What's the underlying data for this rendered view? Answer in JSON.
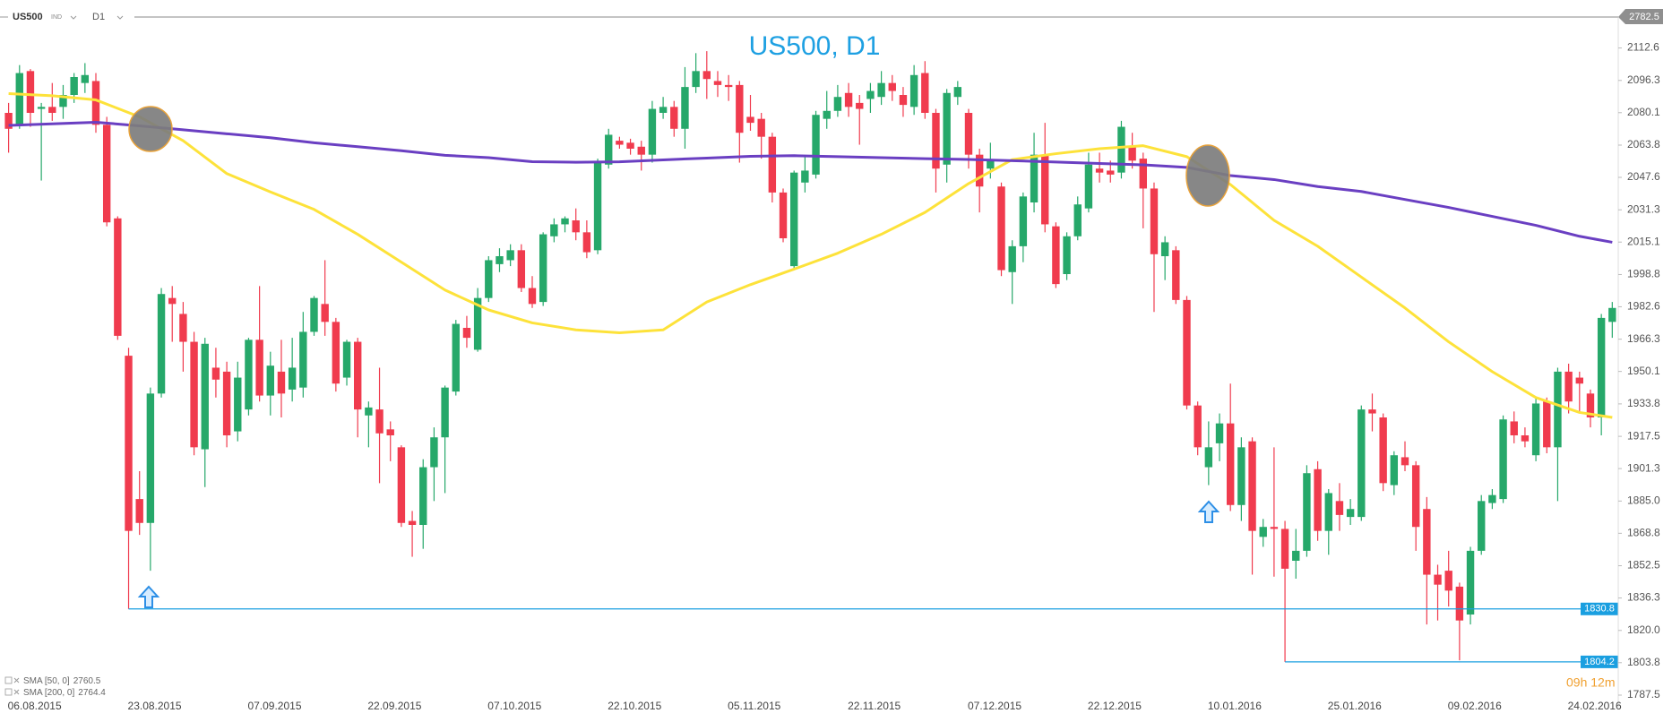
{
  "chart_data": {
    "type": "candlestick",
    "title": "US500, D1",
    "symbol": "US500",
    "symbol_type": "IND",
    "timeframe": "D1",
    "current_price": 2782.5,
    "countdown": "09h 12m",
    "up_color": "#26a86a",
    "down_color": "#f03b4e",
    "categories": [
      "06.08.2015",
      null,
      null,
      null,
      null,
      null,
      null,
      null,
      null,
      null,
      null,
      "23.08.2015",
      null,
      null,
      null,
      null,
      null,
      null,
      null,
      null,
      null,
      null,
      "07.09.2015",
      null,
      null,
      null,
      null,
      null,
      null,
      null,
      null,
      null,
      null,
      "22.09.2015",
      null,
      null,
      null,
      null,
      null,
      null,
      null,
      null,
      null,
      null,
      "07.10.2015",
      null,
      null,
      null,
      null,
      null,
      null,
      null,
      null,
      null,
      null,
      "22.10.2015",
      null,
      null,
      null,
      null,
      null,
      null,
      null,
      null,
      null,
      null,
      "05.11.2015",
      null,
      null,
      null,
      null,
      null,
      null,
      null,
      null,
      null,
      null,
      "22.11.2015",
      null,
      null,
      null,
      null,
      null,
      null,
      null,
      null,
      null,
      null,
      "07.12.2015",
      null,
      null,
      null,
      null,
      null,
      null,
      null,
      null,
      null,
      null,
      "22.12.2015",
      null,
      null,
      null,
      null,
      null,
      null,
      null,
      null,
      null,
      null,
      "10.01.2016",
      null,
      null,
      null,
      null,
      null,
      null,
      null,
      null,
      null,
      null,
      "25.01.2016",
      null,
      null,
      null,
      null,
      null,
      null,
      null,
      null,
      null,
      null,
      "09.02.2016",
      null,
      null,
      null,
      null,
      null,
      null,
      null,
      null,
      null,
      null,
      "24.02.2016",
      null,
      null,
      null,
      null
    ],
    "open": [
      2080,
      2074,
      2101,
      2082,
      2083,
      2083,
      2089,
      2095,
      2096,
      2074,
      2027,
      1958,
      1886,
      1874,
      1939,
      1987,
      1979,
      1965,
      1911,
      1952,
      1950,
      1920,
      1931,
      1966,
      1938,
      1950,
      1941,
      1942,
      1970,
      1984,
      1975,
      1947,
      1965,
      1928,
      1931,
      1921,
      1912,
      1875,
      1873,
      1902,
      1917,
      1940,
      1972,
      1961,
      1987,
      2004,
      2006,
      2011,
      1992,
      1985,
      2018,
      2024,
      2026,
      2020,
      2011,
      2054,
      2066,
      2065,
      2063,
      2059,
      2080,
      2083,
      2072,
      2093,
      2101,
      2096,
      2094,
      2094,
      2078,
      2077,
      2068,
      2040,
      2003,
      2045,
      2049,
      2077,
      2081,
      2090,
      2085,
      2087,
      2088,
      2095,
      2089,
      2083,
      2100,
      2080,
      2054,
      2088,
      2080,
      2059,
      2052,
      2043,
      2000,
      2013,
      2035,
      2059,
      2023,
      1999,
      2018,
      2032,
      2052,
      2051,
      2050,
      2063,
      2057,
      2042,
      2008,
      2011,
      1986,
      1933,
      1902,
      1914,
      1924,
      1883,
      1915,
      1867,
      1872,
      1871,
      1855,
      1860,
      1901,
      1870,
      1885,
      1877,
      1877,
      1931,
      1927,
      1893,
      1907,
      1903,
      1881,
      1848,
      1850,
      1842,
      1828,
      1860,
      1884,
      1886,
      1925,
      1918,
      1908,
      1935,
      1912,
      1950,
      1947,
      1939,
      1927,
      1975
    ],
    "high": [
      2085,
      2104,
      2102,
      2085,
      2095,
      2094,
      2100,
      2105,
      2100,
      2078,
      2028,
      1962,
      1900,
      1942,
      1992,
      1993,
      1985,
      1970,
      1967,
      1962,
      1955,
      1955,
      1967,
      1993,
      1960,
      1966,
      1967,
      1980,
      1988,
      2006,
      1977,
      1966,
      1967,
      1935,
      1952,
      1925,
      1913,
      1880,
      1906,
      1922,
      1943,
      1976,
      1978,
      1992,
      2008,
      2012,
      2014,
      2014,
      1998,
      2020,
      2027,
      2028,
      2032,
      2026,
      2057,
      2072,
      2068,
      2067,
      2066,
      2086,
      2088,
      2086,
      2103,
      2110,
      2111,
      2101,
      2099,
      2096,
      2089,
      2080,
      2070,
      2042,
      2051,
      2058,
      2081,
      2091,
      2094,
      2095,
      2089,
      2095,
      2101,
      2099,
      2093,
      2104,
      2106,
      2082,
      2092,
      2096,
      2082,
      2062,
      2065,
      2045,
      2016,
      2040,
      2070,
      2075,
      2025,
      2020,
      2038,
      2060,
      2060,
      2056,
      2076,
      2070,
      2060,
      2045,
      2018,
      2013,
      1988,
      1935,
      1925,
      1929,
      1944,
      1917,
      1917,
      1876,
      1912,
      1875,
      1871,
      1903,
      1905,
      1891,
      1894,
      1886,
      1933,
      1939,
      1929,
      1910,
      1915,
      1905,
      1887,
      1853,
      1860,
      1844,
      1862,
      1888,
      1891,
      1928,
      1930,
      1922,
      1937,
      1937,
      1952,
      1954,
      1950,
      1941,
      1979,
      1985
    ],
    "low": [
      2060,
      2072,
      2073,
      2046,
      2076,
      2077,
      2085,
      2090,
      2070,
      2023,
      1966,
      1830.8,
      1868,
      1850,
      1937,
      1965,
      1950,
      1908,
      1892,
      1937,
      1912,
      1915,
      1928,
      1935,
      1928,
      1927,
      1935,
      1937,
      1968,
      1968,
      1940,
      1943,
      1917,
      1912,
      1894,
      1905,
      1872,
      1857,
      1861,
      1885,
      1889,
      1938,
      1962,
      1960,
      1985,
      2000,
      2003,
      1990,
      1982,
      1983,
      2015,
      2020,
      2016,
      2007,
      2009,
      2052,
      2062,
      2059,
      2051,
      2055,
      2077,
      2068,
      2062,
      2090,
      2087,
      2088,
      2086,
      2055,
      2071,
      2057,
      2035,
      2015,
      2001,
      2040,
      2047,
      2072,
      2078,
      2078,
      2064,
      2080,
      2084,
      2086,
      2078,
      2079,
      2077,
      2040,
      2045,
      2084,
      2052,
      2030,
      2047,
      1998,
      1984,
      2005,
      2030,
      2020,
      1992,
      1996,
      2016,
      2030,
      2045,
      2045,
      2047,
      2052,
      2022,
      1980,
      1996,
      1984,
      1931,
      1908,
      1893,
      1905,
      1880,
      1875,
      1848,
      1862,
      1847,
      1804.2,
      1846,
      1857,
      1865,
      1858,
      1870,
      1873,
      1875,
      1920,
      1890,
      1888,
      1900,
      1860,
      1823,
      1825,
      1832,
      1805,
      1823,
      1858,
      1881,
      1884,
      1914,
      1912,
      1905,
      1909,
      1885,
      1929,
      1930,
      1922,
      1918,
      1967
    ],
    "close": [
      2072,
      2100,
      2080,
      2083,
      2080,
      2089,
      2098,
      2099,
      2074,
      2025,
      1968,
      1870,
      1874,
      1939,
      1989,
      1984,
      1965,
      1912,
      1964,
      1946,
      1918,
      1947,
      1966,
      1938,
      1953,
      1939,
      1952,
      1970,
      1987,
      1975,
      1944,
      1965,
      1931,
      1932,
      1919,
      1918,
      1874,
      1873,
      1902,
      1917,
      1942,
      1974,
      1967,
      1987,
      2006,
      2008,
      2011,
      1992,
      1984,
      2019,
      2024,
      2027,
      2020,
      2010,
      2055,
      2069,
      2064,
      2062,
      2059,
      2082,
      2083,
      2072,
      2093,
      2101,
      2097,
      2094,
      2093,
      2070,
      2075,
      2068,
      2040,
      2017,
      2050,
      2051,
      2079,
      2081,
      2088,
      2083,
      2082,
      2091,
      2095,
      2091,
      2084,
      2099,
      2080,
      2052,
      2090,
      2093,
      2059,
      2043,
      2056,
      2001,
      2013,
      2038,
      2059,
      2024,
      1994,
      2018,
      2034,
      2054,
      2050,
      2049,
      2073,
      2056,
      2042,
      2009,
      2015,
      1986,
      1933,
      1912,
      1912,
      1924,
      1883,
      1912,
      1870,
      1872,
      1871,
      1851,
      1860,
      1899,
      1870,
      1889,
      1878,
      1881,
      1931,
      1929,
      1894,
      1908,
      1903,
      1872,
      1848,
      1843,
      1840,
      1825,
      1860,
      1885,
      1888,
      1926,
      1918,
      1915,
      1934,
      1912,
      1950,
      1935,
      1944,
      1927,
      1977,
      1982
    ],
    "indicators": [
      {
        "name": "SMA [50, 0]",
        "last_value": 2760.5,
        "color": "#fde23a",
        "x": [
          0,
          4,
          8,
          12,
          16,
          20,
          24,
          28,
          32,
          36,
          40,
          44,
          48,
          52,
          56,
          60,
          64,
          68,
          72,
          76,
          80,
          84,
          88,
          92,
          96,
          100,
          104,
          108,
          112,
          116,
          120,
          124,
          128,
          132,
          136,
          140,
          144,
          147
        ],
        "values": [
          2089.7,
          2088.6,
          2086.5,
          2078,
          2066,
          2049.5,
          2040.3,
          2031.5,
          2019,
          2005,
          1991,
          1981,
          1974.5,
          1971,
          1969.5,
          1971,
          1985,
          1993.7,
          2001.5,
          2009.5,
          2019,
          2030,
          2044.5,
          2056.5,
          2059.5,
          2062,
          2063.5,
          2058,
          2044,
          2026,
          2013,
          1997.5,
          1982,
          1965,
          1950,
          1937,
          1929.5,
          1927
        ]
      },
      {
        "name": "SMA [200, 0]",
        "last_value": 2764.4,
        "color": "#6a3fc2",
        "x": [
          0,
          4,
          8,
          12,
          16,
          20,
          24,
          28,
          32,
          36,
          40,
          44,
          48,
          52,
          56,
          60,
          64,
          68,
          72,
          76,
          80,
          84,
          88,
          92,
          96,
          100,
          104,
          108,
          112,
          116,
          120,
          124,
          128,
          132,
          136,
          140,
          144,
          147
        ],
        "values": [
          2073.7,
          2074.5,
          2075.3,
          2073.5,
          2071.5,
          2069.5,
          2067.5,
          2065,
          2063,
          2061,
          2058.7,
          2057.5,
          2055.5,
          2055.2,
          2055.4,
          2056.4,
          2057.3,
          2058.2,
          2058.5,
          2058,
          2057.5,
          2057,
          2056.6,
          2056,
          2055.3,
          2054.6,
          2053.9,
          2052.6,
          2048.5,
          2046.5,
          2043,
          2040.5,
          2036.5,
          2032.5,
          2028,
          2023.5,
          2018,
          2015
        ]
      }
    ],
    "price_lines": [
      1830.8,
      1804.2
    ],
    "price_line_color": "#1a9fe0",
    "ylim": [
      1781.2,
      2127.7
    ],
    "yticks": [
      2112.6,
      2096.3,
      2080.1,
      2063.8,
      2047.6,
      2031.3,
      2015.1,
      1998.8,
      1982.6,
      1966.3,
      1950.1,
      1933.8,
      1917.5,
      1901.3,
      {
        "value": 1885,
        "label": "1885.0"
      },
      1868.8,
      1852.5,
      1836.3,
      {
        "value": 1820,
        "label": "1820.0"
      },
      1803.8,
      1787.5
    ]
  }
}
